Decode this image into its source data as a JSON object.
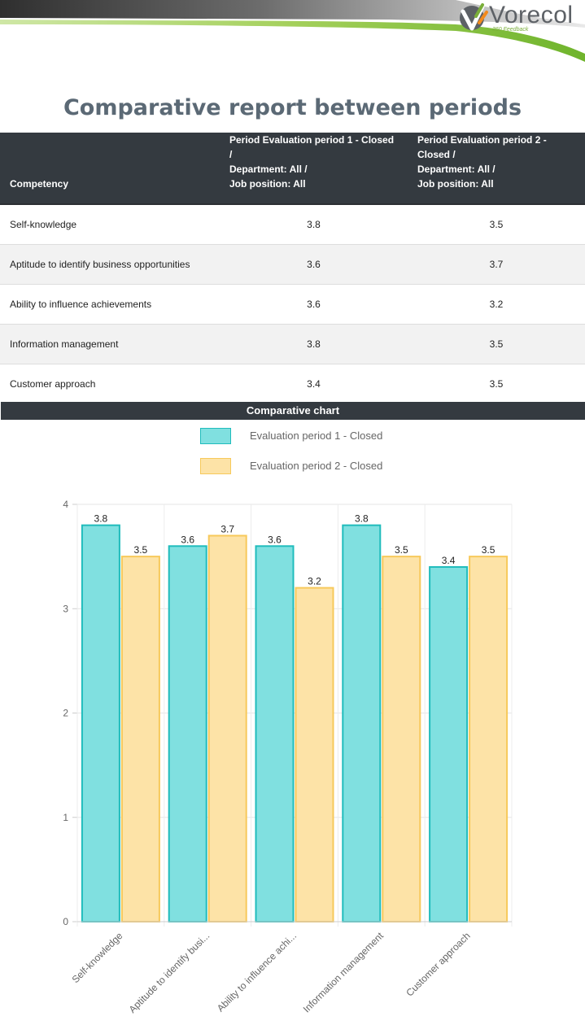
{
  "brand": {
    "name": "Vorecol",
    "tagline": "360 Feedback"
  },
  "title": "Comparative report between periods",
  "table": {
    "headers": [
      "Competency",
      "Period Evaluation period 1 - Closed / Department: All / Job position: All",
      "Period Evaluation period 2 - Closed / Department: All / Job position: All"
    ],
    "rows": [
      [
        "Self-knowledge",
        "3.8",
        "3.5"
      ],
      [
        "Aptitude to identify business opportunities",
        "3.6",
        "3.7"
      ],
      [
        "Ability to influence achievements",
        "3.6",
        "3.2"
      ],
      [
        "Information management",
        "3.8",
        "3.5"
      ],
      [
        "Customer approach",
        "3.4",
        "3.5"
      ]
    ]
  },
  "chart_header": "Comparative chart",
  "chart_data": {
    "type": "bar",
    "categories": [
      "Self-knowledge",
      "Aptitude to identify busi...",
      "Ability to influence achi...",
      "Information management",
      "Customer approach"
    ],
    "series": [
      {
        "name": "Evaluation period 1 - Closed",
        "values": [
          3.8,
          3.6,
          3.6,
          3.8,
          3.4
        ],
        "fill": "#80e0e0",
        "stroke": "#20bcbc"
      },
      {
        "name": "Evaluation period 2 - Closed",
        "values": [
          3.5,
          3.7,
          3.2,
          3.5,
          3.5
        ],
        "fill": "#fde3a7",
        "stroke": "#f7c95b"
      }
    ],
    "yticks": [
      "0",
      "1",
      "2",
      "3",
      "4"
    ],
    "ylim": [
      0,
      4
    ],
    "grid": true,
    "legend_position": "top",
    "data_labels": true
  },
  "colors": {
    "header_bg": "#343a40",
    "title": "#5b6975",
    "brand_green": "#7aae3a"
  }
}
